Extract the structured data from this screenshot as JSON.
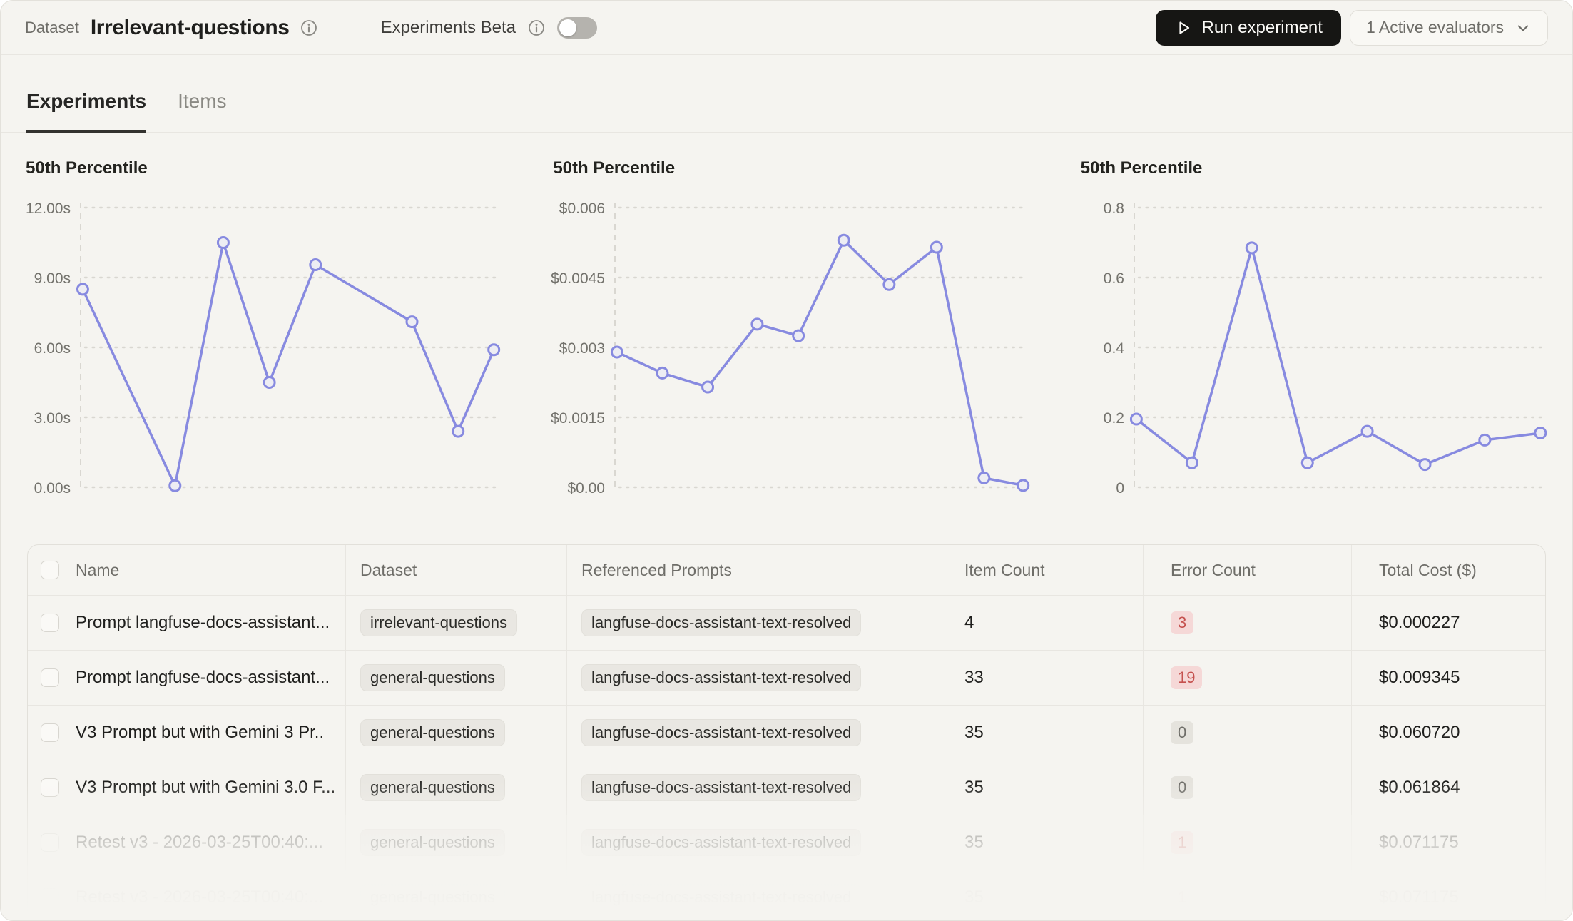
{
  "header": {
    "dataset_label": "Dataset",
    "dataset_name": "Irrelevant-questions",
    "beta_label": "Experiments Beta",
    "run_button": "Run experiment",
    "evaluators_button": "1 Active evaluators"
  },
  "tabs": [
    {
      "label": "Experiments",
      "active": true
    },
    {
      "label": "Items",
      "active": false
    }
  ],
  "charts": [
    {
      "type": "line",
      "title": "50th Percentile",
      "yticks": [
        "12.00s",
        "9.00s",
        "6.00s",
        "3.00s",
        "0.00s"
      ],
      "ymax": 12,
      "points": [
        {
          "x": 0.005,
          "v": 8.5
        },
        {
          "x": 0.225,
          "v": 0.07
        },
        {
          "x": 0.34,
          "v": 10.5
        },
        {
          "x": 0.45,
          "v": 4.5
        },
        {
          "x": 0.56,
          "v": 9.55
        },
        {
          "x": 0.79,
          "v": 7.1
        },
        {
          "x": 0.9,
          "v": 2.4
        },
        {
          "x": 0.985,
          "v": 5.9
        }
      ]
    },
    {
      "type": "line",
      "title": "50th Percentile",
      "yticks": [
        "$0.006",
        "$0.0045",
        "$0.003",
        "$0.0015",
        "$0.00"
      ],
      "ymax": 0.006,
      "points": [
        {
          "x": 0.005,
          "v": 0.0029
        },
        {
          "x": 0.115,
          "v": 0.00245
        },
        {
          "x": 0.225,
          "v": 0.00215
        },
        {
          "x": 0.345,
          "v": 0.0035
        },
        {
          "x": 0.445,
          "v": 0.00325
        },
        {
          "x": 0.555,
          "v": 0.0053
        },
        {
          "x": 0.665,
          "v": 0.00435
        },
        {
          "x": 0.78,
          "v": 0.00515
        },
        {
          "x": 0.895,
          "v": 0.0002
        },
        {
          "x": 0.99,
          "v": 4e-05
        }
      ]
    },
    {
      "type": "line",
      "title": "50th Percentile",
      "yticks": [
        "0.8",
        "0.6",
        "0.4",
        "0.2",
        "0"
      ],
      "ymax": 0.8,
      "points": [
        {
          "x": 0.005,
          "v": 0.195
        },
        {
          "x": 0.14,
          "v": 0.07
        },
        {
          "x": 0.285,
          "v": 0.685
        },
        {
          "x": 0.42,
          "v": 0.07
        },
        {
          "x": 0.565,
          "v": 0.16
        },
        {
          "x": 0.705,
          "v": 0.065
        },
        {
          "x": 0.85,
          "v": 0.135
        },
        {
          "x": 0.985,
          "v": 0.155
        }
      ]
    }
  ],
  "table": {
    "columns": [
      "Name",
      "Dataset",
      "Referenced Prompts",
      "Item Count",
      "Error Count",
      "Total Cost ($)"
    ],
    "rows": [
      {
        "name": "Prompt langfuse-docs-assistant...",
        "dataset": "irrelevant-questions",
        "prompt": "langfuse-docs-assistant-text-resolved",
        "item_count": "4",
        "error_count": "3",
        "error_style": "red",
        "total_cost": "$0.000227",
        "fade": "none"
      },
      {
        "name": "Prompt langfuse-docs-assistant...",
        "dataset": "general-questions",
        "prompt": "langfuse-docs-assistant-text-resolved",
        "item_count": "33",
        "error_count": "19",
        "error_style": "red",
        "total_cost": "$0.009345",
        "fade": "none"
      },
      {
        "name": "V3 Prompt but with Gemini 3 Pr..",
        "dataset": "general-questions",
        "prompt": "langfuse-docs-assistant-text-resolved",
        "item_count": "35",
        "error_count": "0",
        "error_style": "gray",
        "total_cost": "$0.060720",
        "fade": "none"
      },
      {
        "name": "V3 Prompt but with Gemini 3.0 F...",
        "dataset": "general-questions",
        "prompt": "langfuse-docs-assistant-text-resolved",
        "item_count": "35",
        "error_count": "0",
        "error_style": "gray",
        "total_cost": "$0.061864",
        "fade": "none"
      },
      {
        "name": "Retest v3 - 2026-03-25T00:40:...",
        "dataset": "general-questions",
        "prompt": "langfuse-docs-assistant-text-resolved",
        "item_count": "35",
        "error_count": "1",
        "error_style": "red",
        "total_cost": "$0.071175",
        "fade": "medium"
      },
      {
        "name": "Retest v3 - 2026-03-25T00:40:...",
        "dataset": "general-questions",
        "prompt": "langfuse-docs-assistant-text-resolved",
        "item_count": "35",
        "error_count": "1",
        "error_style": "red",
        "total_cost": "$0.071175",
        "fade": "heavy"
      }
    ]
  },
  "colors": {
    "line": "#878AE0",
    "marker_fill": "#EDEDF3",
    "grid": "#D9D7D1",
    "axis_text": "#73726C",
    "accent_dark": "#161614",
    "error_red": "#C5514E"
  }
}
